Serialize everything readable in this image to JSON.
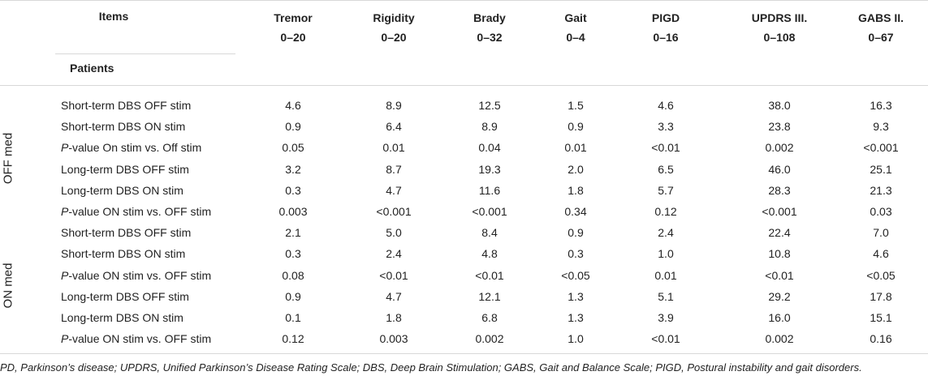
{
  "table": {
    "items_header": "Items",
    "patients_header": "Patients",
    "columns": [
      {
        "name": "Tremor",
        "range": "0–20"
      },
      {
        "name": "Rigidity",
        "range": "0–20"
      },
      {
        "name": "Brady",
        "range": "0–32"
      },
      {
        "name": "Gait",
        "range": "0–4"
      },
      {
        "name": "PIGD",
        "range": "0–16"
      },
      {
        "name": "UPDRS III.",
        "range": "0–108"
      },
      {
        "name": "GABS II.",
        "range": "0–67"
      }
    ],
    "groups": [
      {
        "label": "OFF med",
        "rows": [
          {
            "prefix": "",
            "label": "Short-term DBS OFF stim",
            "values": [
              "4.6",
              "8.9",
              "12.5",
              "1.5",
              "4.6",
              "38.0",
              "16.3"
            ]
          },
          {
            "prefix": "",
            "label": "Short-term DBS ON stim",
            "values": [
              "0.9",
              "6.4",
              "8.9",
              "0.9",
              "3.3",
              "23.8",
              "9.3"
            ]
          },
          {
            "prefix": "P",
            "label": "-value On stim vs. Off stim",
            "values": [
              "0.05",
              "0.01",
              "0.04",
              "0.01",
              "<0.01",
              "0.002",
              "<0.001"
            ]
          },
          {
            "prefix": "",
            "label": "Long-term DBS OFF stim",
            "values": [
              "3.2",
              "8.7",
              "19.3",
              "2.0",
              "6.5",
              "46.0",
              "25.1"
            ]
          },
          {
            "prefix": "",
            "label": "Long-term DBS ON stim",
            "values": [
              "0.3",
              "4.7",
              "11.6",
              "1.8",
              "5.7",
              "28.3",
              "21.3"
            ]
          },
          {
            "prefix": "P",
            "label": "-value ON stim vs. OFF stim",
            "values": [
              "0.003",
              "<0.001",
              "<0.001",
              "0.34",
              "0.12",
              "<0.001",
              "0.03"
            ]
          }
        ]
      },
      {
        "label": "ON med",
        "rows": [
          {
            "prefix": "",
            "label": "Short-term DBS OFF stim",
            "values": [
              "2.1",
              "5.0",
              "8.4",
              "0.9",
              "2.4",
              "22.4",
              "7.0"
            ]
          },
          {
            "prefix": "",
            "label": "Short-term DBS ON stim",
            "values": [
              "0.3",
              "2.4",
              "4.8",
              "0.3",
              "1.0",
              "10.8",
              "4.6"
            ]
          },
          {
            "prefix": "P",
            "label": "-value ON stim vs. OFF stim",
            "values": [
              "0.08",
              "<0.01",
              "<0.01",
              "<0.05",
              "0.01",
              "<0.01",
              "<0.05"
            ]
          },
          {
            "prefix": "",
            "label": "Long-term DBS OFF stim",
            "values": [
              "0.9",
              "4.7",
              "12.1",
              "1.3",
              "5.1",
              "29.2",
              "17.8"
            ]
          },
          {
            "prefix": "",
            "label": "Long-term DBS ON stim",
            "values": [
              "0.1",
              "1.8",
              "6.8",
              "1.3",
              "3.9",
              "16.0",
              "15.1"
            ]
          },
          {
            "prefix": "P",
            "label": "-value ON stim vs. OFF stim",
            "values": [
              "0.12",
              "0.003",
              "0.002",
              "1.0",
              "<0.01",
              "0.002",
              "0.16"
            ]
          }
        ]
      }
    ],
    "footnote": "PD, Parkinson’s disease; UPDRS, Unified Parkinson’s Disease Rating Scale; DBS, Deep Brain Stimulation; GABS, Gait and Balance Scale; PIGD, Postural instability and gait disorders."
  }
}
